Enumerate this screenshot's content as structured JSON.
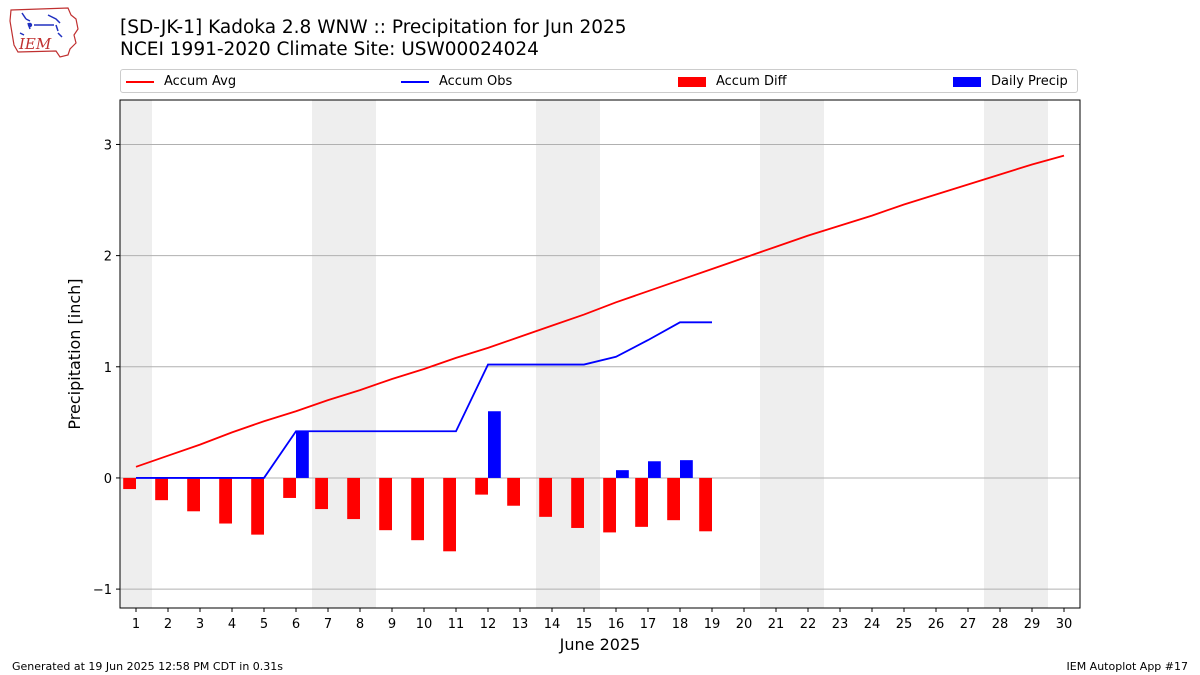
{
  "logo": {
    "text": "IEM"
  },
  "title_line1": "[SD-JK-1] Kadoka 2.8 WNW :: Precipitation for Jun 2025",
  "title_line2": "NCEI 1991-2020 Climate Site: USW00024024",
  "footer_left": "Generated at 19 Jun 2025 12:58 PM CDT in 0.31s",
  "footer_right": "IEM Autoplot App #17",
  "colors": {
    "avg": "#ff0000",
    "obs": "#0000ff",
    "diff": "#ff0000",
    "daily": "#0000ff",
    "weekend": "#eeeeee",
    "grid": "#b0b0b0"
  },
  "legend": {
    "avg": "Accum Avg",
    "obs": "Accum Obs",
    "diff": "Accum Diff",
    "daily": "Daily Precip"
  },
  "chart_data": {
    "type": "bar",
    "xlabel": "June 2025",
    "ylabel": "Precipitation [inch]",
    "ylim": [
      -1.17,
      3.4
    ],
    "xlim": [
      0.5,
      30.5
    ],
    "yticks": [
      -1,
      0,
      1,
      2,
      3
    ],
    "days": [
      1,
      2,
      3,
      4,
      5,
      6,
      7,
      8,
      9,
      10,
      11,
      12,
      13,
      14,
      15,
      16,
      17,
      18,
      19,
      20,
      21,
      22,
      23,
      24,
      25,
      26,
      27,
      28,
      29,
      30
    ],
    "weekend_days": [
      1,
      7,
      8,
      14,
      15,
      21,
      22,
      28,
      29
    ],
    "grid": true,
    "legend_position": "top",
    "series": [
      {
        "name": "Accum Avg",
        "type": "line",
        "values": [
          0.1,
          0.2,
          0.3,
          0.41,
          0.51,
          0.6,
          0.7,
          0.79,
          0.89,
          0.98,
          1.08,
          1.17,
          1.27,
          1.37,
          1.47,
          1.58,
          1.68,
          1.78,
          1.88,
          1.98,
          2.08,
          2.18,
          2.27,
          2.36,
          2.46,
          2.55,
          2.64,
          2.73,
          2.82,
          2.9
        ]
      },
      {
        "name": "Accum Obs",
        "type": "line",
        "values": [
          0,
          0,
          0,
          0,
          0,
          0.42,
          0.42,
          0.42,
          0.42,
          0.42,
          0.42,
          1.02,
          1.02,
          1.02,
          1.02,
          1.09,
          1.24,
          1.4,
          1.4
        ]
      },
      {
        "name": "Accum Diff",
        "type": "bar",
        "values": [
          -0.1,
          -0.2,
          -0.3,
          -0.41,
          -0.51,
          -0.18,
          -0.28,
          -0.37,
          -0.47,
          -0.56,
          -0.66,
          -0.15,
          -0.25,
          -0.35,
          -0.45,
          -0.49,
          -0.44,
          -0.38,
          -0.48
        ]
      },
      {
        "name": "Daily Precip",
        "type": "bar",
        "values": [
          0,
          0,
          0,
          0,
          0,
          0.42,
          0,
          0,
          0,
          0,
          0,
          0.6,
          0,
          0,
          0,
          0.07,
          0.15,
          0.16,
          0
        ]
      }
    ]
  }
}
